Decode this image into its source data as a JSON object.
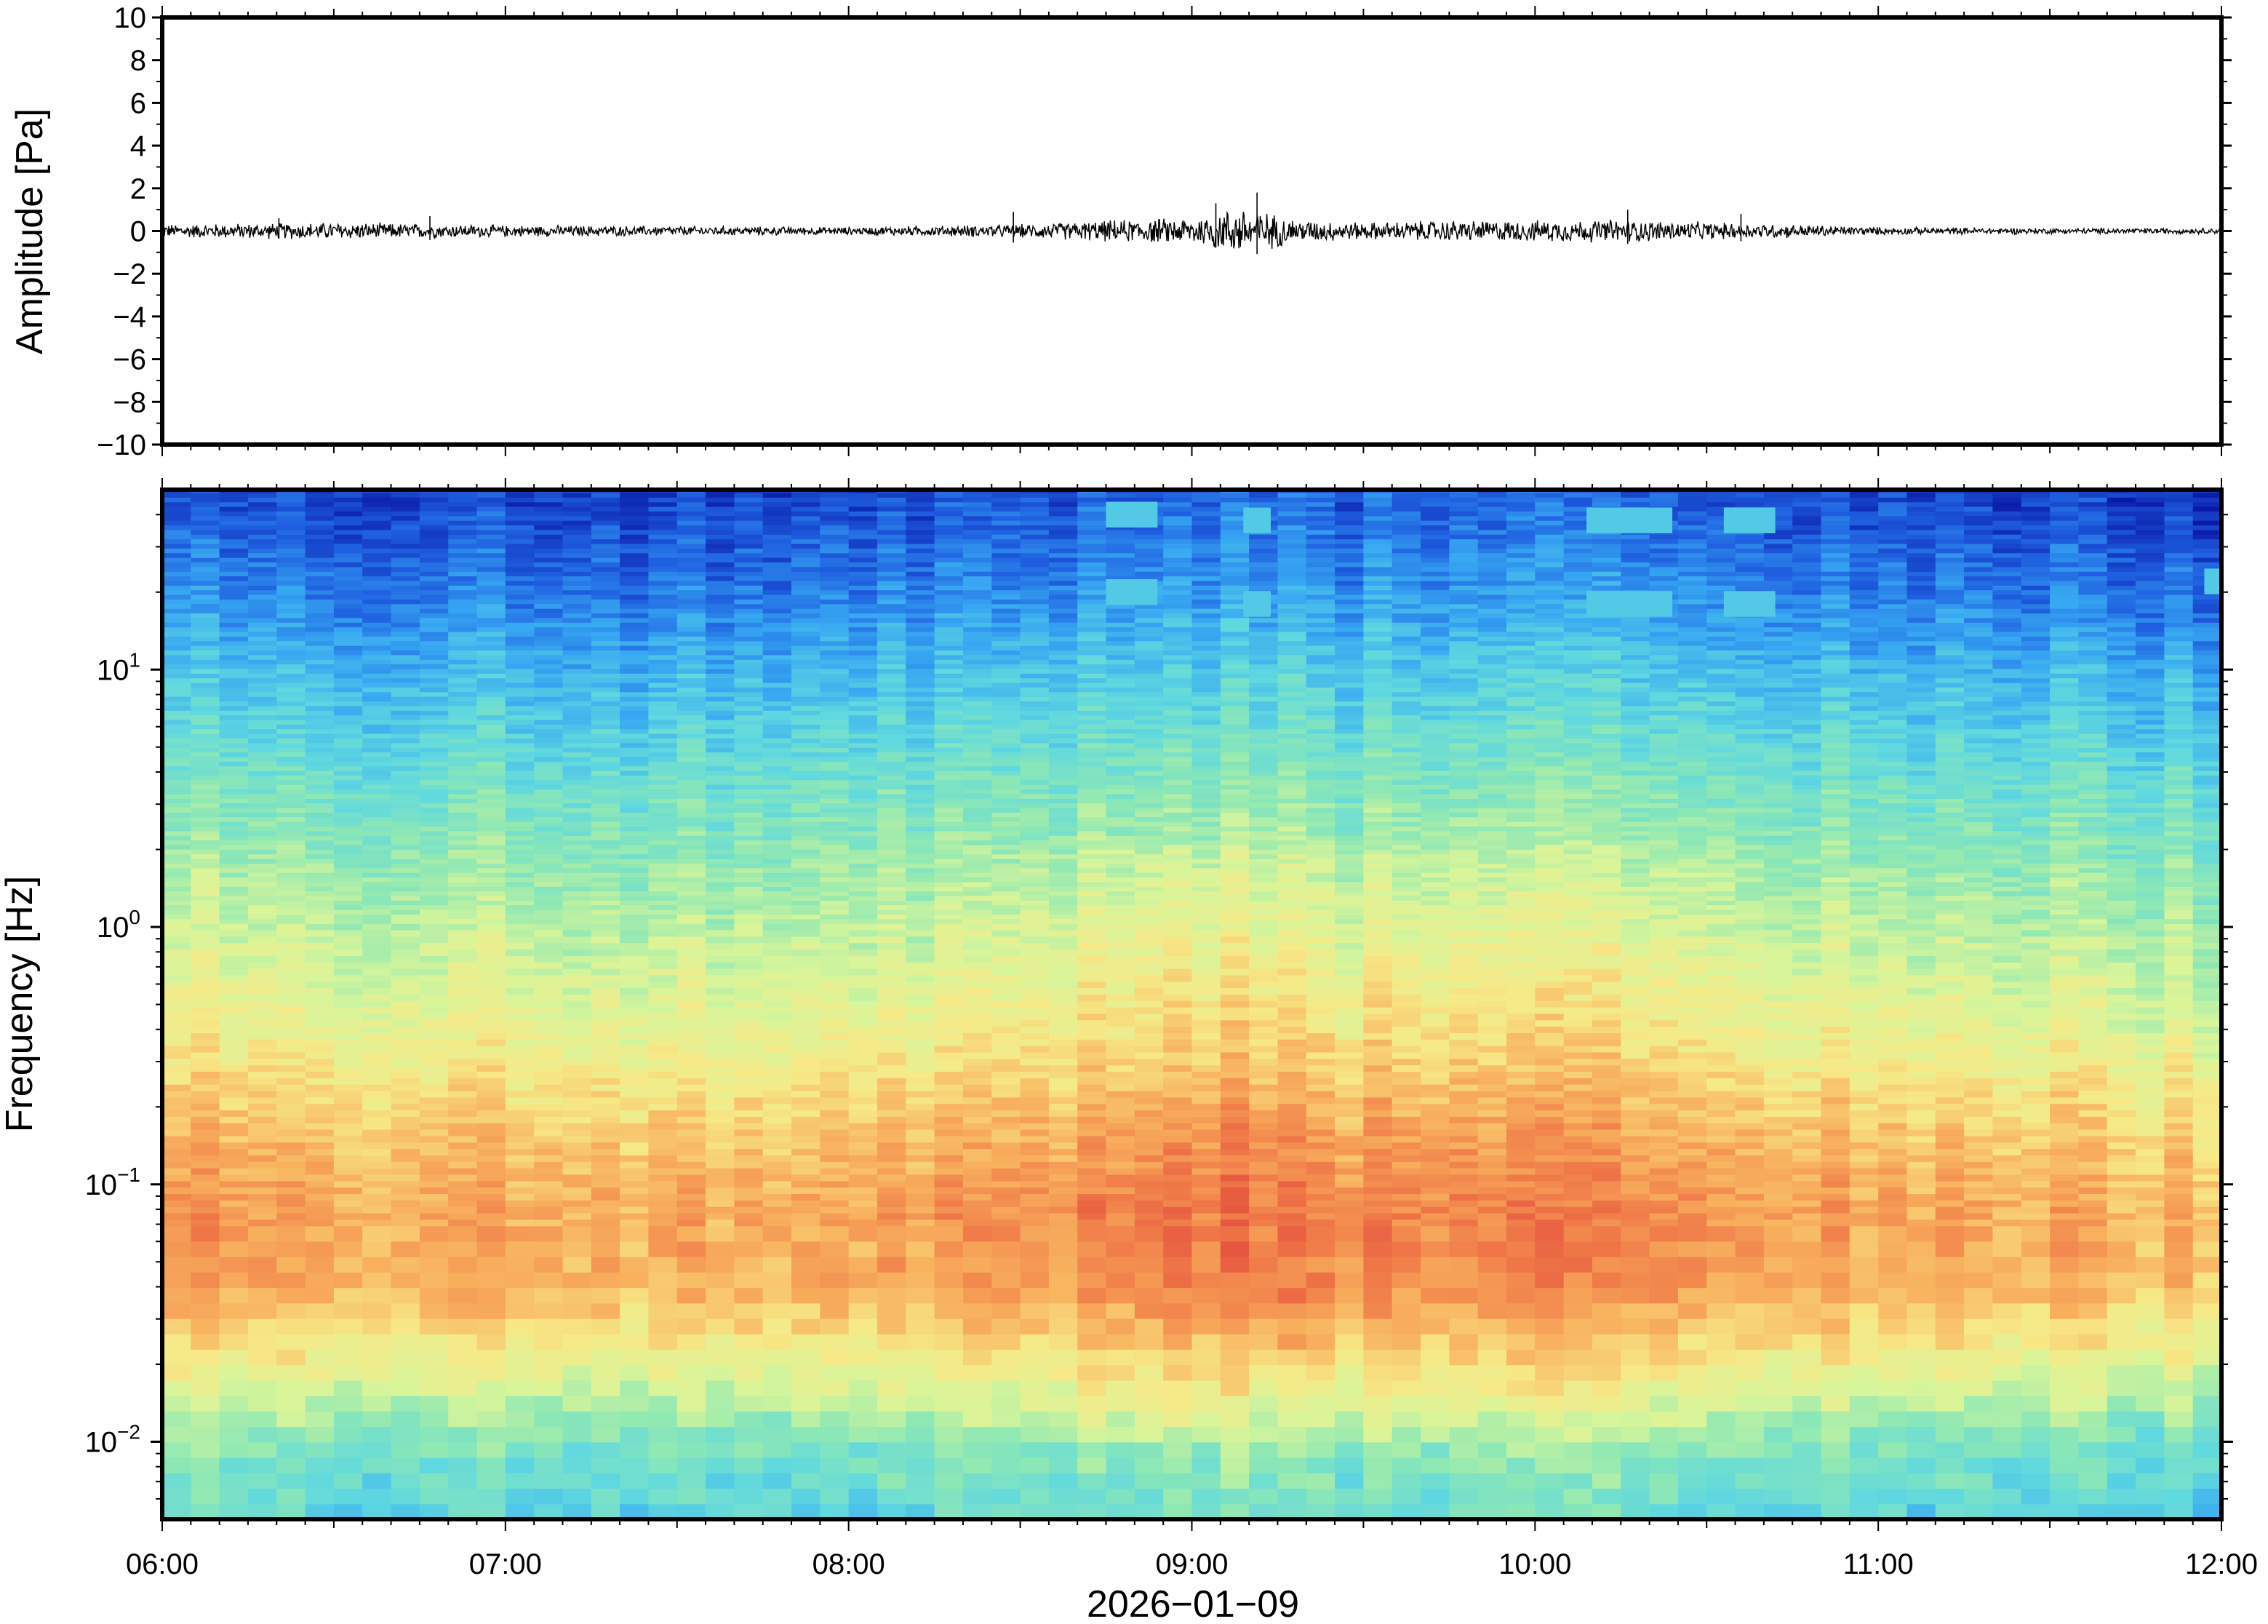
{
  "chart_data": [
    {
      "type": "line",
      "panel": "waveform",
      "ylabel": "Amplitude [Pa]",
      "ylim": [
        -10,
        10
      ],
      "ytick_labels": [
        "10",
        "8",
        "6",
        "4",
        "2",
        "0",
        "−2",
        "−4",
        "−6",
        "−8",
        "−10"
      ],
      "yticks": [
        10,
        8,
        6,
        4,
        2,
        0,
        -2,
        -4,
        -6,
        -8,
        -10
      ],
      "xlim": [
        "06:00",
        "12:00"
      ],
      "line_color": "#000000",
      "envelope_hours": [
        6.0,
        6.5,
        7.0,
        7.5,
        8.0,
        8.5,
        8.75,
        9.0,
        9.15,
        9.3,
        9.5,
        9.75,
        10.0,
        10.25,
        10.5,
        10.75,
        11.0,
        11.5,
        12.0
      ],
      "envelope_amplitude_pa": [
        0.35,
        0.45,
        0.3,
        0.25,
        0.2,
        0.35,
        0.55,
        0.7,
        1.3,
        0.6,
        0.45,
        0.55,
        0.55,
        0.6,
        0.45,
        0.35,
        0.2,
        0.15,
        0.15
      ],
      "spikes": [
        {
          "hour": 9.07,
          "value": 1.3
        },
        {
          "hour": 9.19,
          "value": 1.8
        },
        {
          "hour": 10.27,
          "value": 1.0
        },
        {
          "hour": 8.48,
          "value": 0.9
        },
        {
          "hour": 10.6,
          "value": 0.8
        },
        {
          "hour": 6.34,
          "value": 0.6
        },
        {
          "hour": 6.78,
          "value": 0.7
        }
      ]
    },
    {
      "type": "heatmap",
      "panel": "spectrogram",
      "ylabel": "Frequency [Hz]",
      "xlabel": "2026−01−09",
      "y_scale": "log",
      "ylim_hz": [
        0.005,
        50
      ],
      "ytick_values": [
        0.01,
        0.1,
        1,
        10
      ],
      "ytick_labels": [
        {
          "base": "10",
          "exp": "−2"
        },
        {
          "base": "10",
          "exp": "−1"
        },
        {
          "base": "10",
          "exp": "0"
        },
        {
          "base": "10",
          "exp": "1"
        }
      ],
      "x_start_hour": 6,
      "x_end_hour": 12,
      "xtick_labels": [
        "06:00",
        "07:00",
        "08:00",
        "09:00",
        "10:00",
        "11:00",
        "12:00"
      ],
      "colormap": [
        "#0a1aa8",
        "#1f5fe0",
        "#37a8f2",
        "#5fd8e0",
        "#8ee8b4",
        "#d8f59a",
        "#f7e987",
        "#f8b15e",
        "#f07a48",
        "#e0403a"
      ],
      "intensity_profile": {
        "log10_freq": [
          -2.3,
          -2.0,
          -1.7,
          -1.4,
          -1.1,
          -0.8,
          -0.5,
          0.0,
          0.5,
          1.0,
          1.3,
          1.7
        ],
        "level": [
          0.33,
          0.42,
          0.62,
          0.78,
          0.8,
          0.74,
          0.64,
          0.52,
          0.4,
          0.26,
          0.16,
          0.07
        ]
      },
      "time_activity": {
        "hours": [
          6.0,
          7.0,
          8.0,
          8.5,
          9.0,
          9.5,
          10.0,
          10.5,
          11.0,
          12.0
        ],
        "boost": [
          0.02,
          0.0,
          -0.01,
          0.04,
          0.1,
          0.06,
          0.07,
          0.03,
          0.0,
          -0.03
        ]
      },
      "bright_patches": [
        {
          "hour": 8.75,
          "freq_hz": 20,
          "duration_h": 0.15
        },
        {
          "hour": 8.75,
          "freq_hz": 40,
          "duration_h": 0.15
        },
        {
          "hour": 9.15,
          "freq_hz": 18,
          "duration_h": 0.08
        },
        {
          "hour": 9.15,
          "freq_hz": 38,
          "duration_h": 0.08
        },
        {
          "hour": 10.15,
          "freq_hz": 18,
          "duration_h": 0.25
        },
        {
          "hour": 10.15,
          "freq_hz": 38,
          "duration_h": 0.25
        },
        {
          "hour": 10.55,
          "freq_hz": 18,
          "duration_h": 0.15
        },
        {
          "hour": 10.55,
          "freq_hz": 38,
          "duration_h": 0.15
        },
        {
          "hour": 11.95,
          "freq_hz": 22,
          "duration_h": 0.05
        }
      ]
    }
  ]
}
